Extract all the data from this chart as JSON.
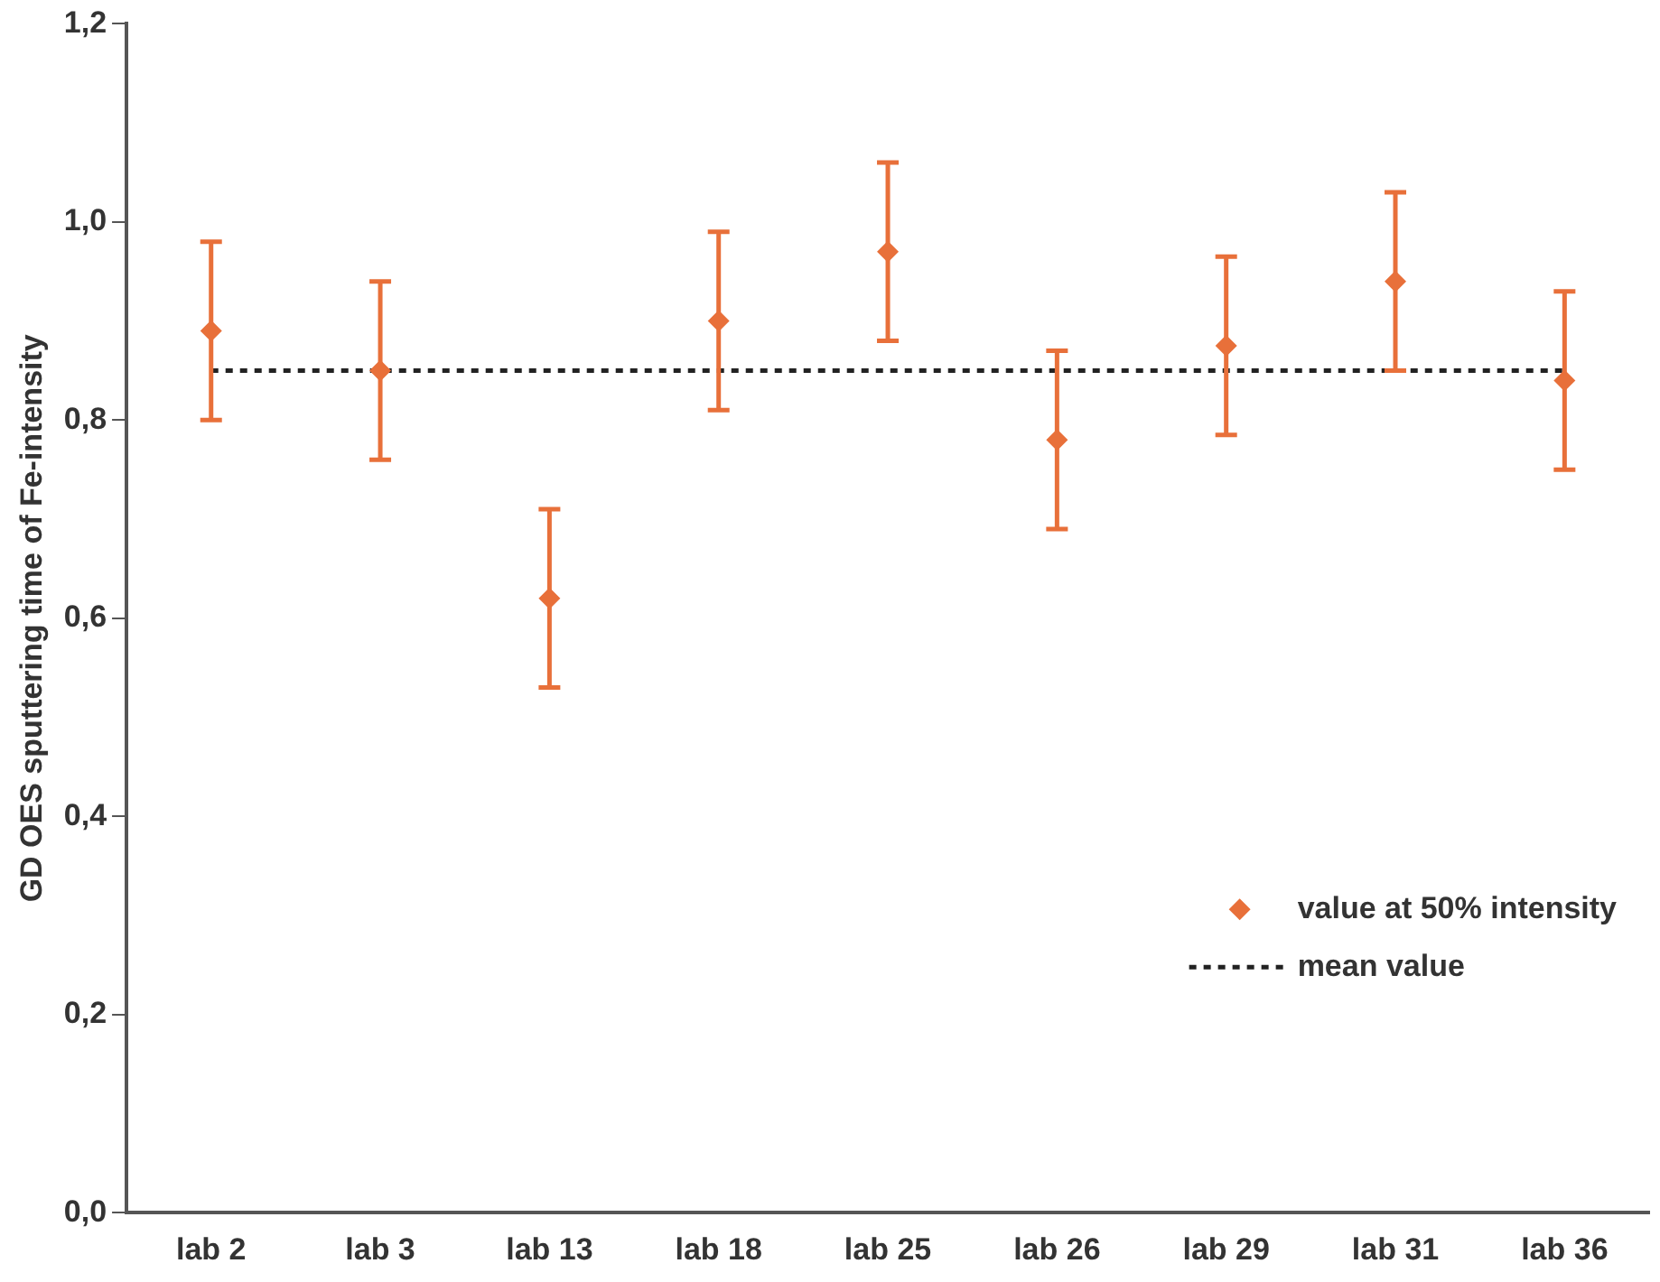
{
  "chart_data": {
    "type": "scatter",
    "ylabel": "GD OES sputtering time of Fe-intensity",
    "categories": [
      "lab 2",
      "lab 3",
      "lab 13",
      "lab 18",
      "lab 25",
      "lab 26",
      "lab 29",
      "lab 31",
      "lab 36"
    ],
    "series": [
      {
        "name": "value at 50% intensity",
        "color": "#e8703a",
        "values": [
          0.89,
          0.85,
          0.62,
          0.9,
          0.97,
          0.78,
          0.875,
          0.94,
          0.84
        ],
        "errors": [
          0.09,
          0.09,
          0.09,
          0.09,
          0.09,
          0.09,
          0.09,
          0.09,
          0.09
        ]
      }
    ],
    "ref_lines": [
      {
        "axis": "y",
        "value": 0.85,
        "label": "mean value",
        "color": "#222222",
        "line_style": "dotted"
      }
    ],
    "ylim": [
      0,
      1.2
    ],
    "yticks": [
      {
        "value": 0,
        "label": "0,0"
      },
      {
        "value": 0.2,
        "label": "0,2"
      },
      {
        "value": 0.4,
        "label": "0,4"
      },
      {
        "value": 0.6,
        "label": "0,6"
      },
      {
        "value": 0.8,
        "label": "0,8"
      },
      {
        "value": 1.0,
        "label": "1,0"
      },
      {
        "value": 1.2,
        "label": "1,2"
      }
    ],
    "marker": "diamond",
    "grid": false,
    "legend": "bottom right"
  }
}
